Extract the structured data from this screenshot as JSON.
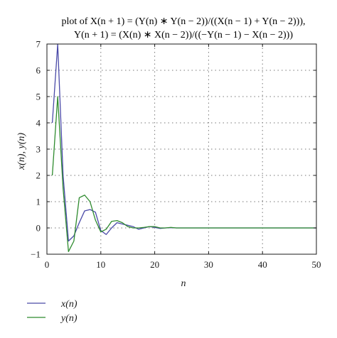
{
  "chart_data": {
    "type": "line",
    "title_line1": "plot of X(n + 1) = (Y(n) ∗ Y(n − 2))/((X(n − 1) + Y(n − 2))),",
    "title_line2": "Y(n + 1) = (X(n) ∗ X(n − 2))/((−Y(n − 1) − X(n − 2)))",
    "xlabel": "n",
    "ylabel": "x(n), y(n)",
    "xlim": [
      0,
      50
    ],
    "ylim": [
      -1,
      7
    ],
    "xticks": [
      0,
      10,
      20,
      30,
      40,
      50
    ],
    "yticks": [
      -1,
      0,
      1,
      2,
      3,
      4,
      5,
      6,
      7
    ],
    "grid": true,
    "legend_position": "bottom-left-outside",
    "series": [
      {
        "name": "x(n)",
        "color": "#4a4aa8",
        "x": [
          1,
          2,
          3,
          4,
          5,
          6,
          7,
          8,
          9,
          10,
          11,
          12,
          13,
          14,
          15,
          16,
          17,
          18,
          19,
          20,
          21,
          22,
          23,
          24,
          25,
          26,
          27,
          28,
          29,
          30,
          31,
          32,
          33,
          34,
          35,
          36,
          37,
          38,
          39,
          40,
          41,
          42,
          43,
          44,
          45,
          46,
          47,
          48,
          49,
          50
        ],
        "y": [
          4,
          7,
          2,
          -0.5,
          -0.3,
          0.2,
          0.65,
          0.7,
          0.6,
          -0.1,
          -0.25,
          0,
          0.2,
          0.15,
          0.1,
          0.05,
          -0.05,
          0,
          0.05,
          0.02,
          -0.02,
          0,
          0.01,
          0,
          0,
          0,
          0,
          0,
          0,
          0,
          0,
          0,
          0,
          0,
          0,
          0,
          0,
          0,
          0,
          0,
          0,
          0,
          0,
          0,
          0,
          0,
          0,
          0,
          0,
          0
        ]
      },
      {
        "name": "y(n)",
        "color": "#2e8b2e",
        "x": [
          1,
          2,
          3,
          4,
          5,
          6,
          7,
          8,
          9,
          10,
          11,
          12,
          13,
          14,
          15,
          16,
          17,
          18,
          19,
          20,
          21,
          22,
          23,
          24,
          25,
          26,
          27,
          28,
          29,
          30,
          31,
          32,
          33,
          34,
          35,
          36,
          37,
          38,
          39,
          40,
          41,
          42,
          43,
          44,
          45,
          46,
          47,
          48,
          49,
          50
        ],
        "y": [
          2,
          5,
          1.5,
          -0.9,
          -0.5,
          1.15,
          1.25,
          1.0,
          0.3,
          -0.15,
          -0.05,
          0.25,
          0.28,
          0.2,
          0.05,
          0,
          0,
          0.02,
          0.05,
          0.05,
          0,
          0,
          0.02,
          0,
          0,
          0,
          0,
          0,
          0,
          0,
          0,
          0,
          0,
          0,
          0,
          0,
          0,
          0,
          0,
          0,
          0,
          0,
          0,
          0,
          0,
          0,
          0,
          0,
          0,
          0
        ]
      }
    ]
  }
}
